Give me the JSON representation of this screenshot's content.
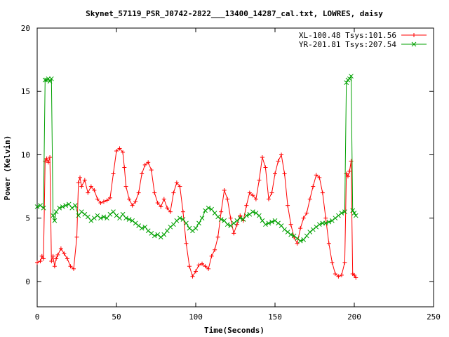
{
  "chart_data": {
    "type": "line",
    "title": "Skynet_57119_PSR_J0742-2822___13400_14287_cal.txt, LOWRES, daisy",
    "xlabel": "Time(Seconds)",
    "ylabel": "Power (Kelvin)",
    "xlim": [
      0,
      250
    ],
    "ylim": [
      -2,
      20
    ],
    "x_ticks": [
      0,
      50,
      100,
      150,
      200,
      250
    ],
    "y_ticks": [
      0,
      5,
      10,
      15,
      20
    ],
    "grid": false,
    "legend_position": "top-right",
    "series": [
      {
        "name": "XL-100.48 Tsys:101.56",
        "color": "#ff0000",
        "marker": "plus",
        "points": [
          [
            0,
            1.5
          ],
          [
            2,
            1.6
          ],
          [
            3,
            2.0
          ],
          [
            4,
            1.8
          ],
          [
            5,
            9.5
          ],
          [
            6,
            9.7
          ],
          [
            7,
            9.4
          ],
          [
            8,
            9.8
          ],
          [
            9,
            1.6
          ],
          [
            10,
            2.0
          ],
          [
            11,
            1.2
          ],
          [
            12,
            1.8
          ],
          [
            13,
            2.1
          ],
          [
            15,
            2.6
          ],
          [
            17,
            2.2
          ],
          [
            19,
            1.8
          ],
          [
            21,
            1.2
          ],
          [
            23,
            1.0
          ],
          [
            25,
            3.5
          ],
          [
            26,
            7.8
          ],
          [
            27,
            8.2
          ],
          [
            28,
            7.5
          ],
          [
            30,
            8.0
          ],
          [
            32,
            7.0
          ],
          [
            34,
            7.5
          ],
          [
            36,
            7.2
          ],
          [
            38,
            6.5
          ],
          [
            40,
            6.2
          ],
          [
            42,
            6.3
          ],
          [
            44,
            6.4
          ],
          [
            46,
            6.6
          ],
          [
            48,
            8.5
          ],
          [
            50,
            10.3
          ],
          [
            52,
            10.5
          ],
          [
            54,
            10.2
          ],
          [
            55,
            9.0
          ],
          [
            56,
            7.5
          ],
          [
            58,
            6.5
          ],
          [
            60,
            6.0
          ],
          [
            62,
            6.3
          ],
          [
            64,
            7.0
          ],
          [
            66,
            8.5
          ],
          [
            68,
            9.2
          ],
          [
            70,
            9.4
          ],
          [
            72,
            8.8
          ],
          [
            74,
            7.0
          ],
          [
            76,
            6.2
          ],
          [
            78,
            5.9
          ],
          [
            80,
            6.5
          ],
          [
            82,
            5.8
          ],
          [
            84,
            5.5
          ],
          [
            86,
            7.0
          ],
          [
            88,
            7.8
          ],
          [
            90,
            7.5
          ],
          [
            92,
            5.5
          ],
          [
            94,
            3.0
          ],
          [
            96,
            1.2
          ],
          [
            98,
            0.4
          ],
          [
            100,
            0.8
          ],
          [
            102,
            1.3
          ],
          [
            104,
            1.4
          ],
          [
            106,
            1.2
          ],
          [
            108,
            1.0
          ],
          [
            110,
            2.0
          ],
          [
            112,
            2.5
          ],
          [
            114,
            3.5
          ],
          [
            116,
            5.5
          ],
          [
            118,
            7.2
          ],
          [
            120,
            6.5
          ],
          [
            122,
            5.0
          ],
          [
            124,
            3.8
          ],
          [
            126,
            4.5
          ],
          [
            128,
            5.2
          ],
          [
            130,
            4.8
          ],
          [
            132,
            6.0
          ],
          [
            134,
            7.0
          ],
          [
            136,
            6.8
          ],
          [
            138,
            6.5
          ],
          [
            140,
            8.0
          ],
          [
            142,
            9.8
          ],
          [
            144,
            9.0
          ],
          [
            146,
            6.5
          ],
          [
            148,
            7.0
          ],
          [
            150,
            8.5
          ],
          [
            152,
            9.5
          ],
          [
            154,
            10.0
          ],
          [
            156,
            8.5
          ],
          [
            158,
            6.0
          ],
          [
            160,
            4.5
          ],
          [
            162,
            3.5
          ],
          [
            164,
            3.0
          ],
          [
            166,
            4.2
          ],
          [
            168,
            5.0
          ],
          [
            170,
            5.4
          ],
          [
            172,
            6.5
          ],
          [
            174,
            7.5
          ],
          [
            176,
            8.4
          ],
          [
            178,
            8.2
          ],
          [
            180,
            7.0
          ],
          [
            182,
            5.0
          ],
          [
            184,
            3.0
          ],
          [
            186,
            1.5
          ],
          [
            188,
            0.6
          ],
          [
            190,
            0.4
          ],
          [
            192,
            0.5
          ],
          [
            194,
            1.5
          ],
          [
            195,
            8.5
          ],
          [
            196,
            8.3
          ],
          [
            197,
            8.7
          ],
          [
            198,
            9.5
          ],
          [
            199,
            0.6
          ],
          [
            200,
            0.5
          ],
          [
            201,
            0.3
          ]
        ]
      },
      {
        "name": "YR-201.81 Tsys:207.54",
        "color": "#00a000",
        "marker": "cross",
        "points": [
          [
            0,
            5.9
          ],
          [
            2,
            6.0
          ],
          [
            4,
            5.8
          ],
          [
            5,
            15.9
          ],
          [
            6,
            15.9
          ],
          [
            7,
            16.0
          ],
          [
            8,
            15.8
          ],
          [
            9,
            16.0
          ],
          [
            10,
            5.2
          ],
          [
            11,
            4.8
          ],
          [
            12,
            5.5
          ],
          [
            14,
            5.8
          ],
          [
            16,
            5.9
          ],
          [
            18,
            6.0
          ],
          [
            20,
            6.1
          ],
          [
            22,
            5.8
          ],
          [
            24,
            6.0
          ],
          [
            26,
            5.2
          ],
          [
            28,
            5.5
          ],
          [
            30,
            5.3
          ],
          [
            32,
            5.1
          ],
          [
            34,
            4.8
          ],
          [
            36,
            5.0
          ],
          [
            38,
            5.2
          ],
          [
            40,
            5.0
          ],
          [
            42,
            5.1
          ],
          [
            44,
            5.0
          ],
          [
            46,
            5.3
          ],
          [
            48,
            5.5
          ],
          [
            50,
            5.2
          ],
          [
            52,
            5.0
          ],
          [
            54,
            5.3
          ],
          [
            56,
            5.0
          ],
          [
            58,
            4.9
          ],
          [
            60,
            4.8
          ],
          [
            62,
            4.6
          ],
          [
            64,
            4.4
          ],
          [
            66,
            4.2
          ],
          [
            68,
            4.3
          ],
          [
            70,
            4.0
          ],
          [
            72,
            3.8
          ],
          [
            74,
            3.6
          ],
          [
            76,
            3.7
          ],
          [
            78,
            3.5
          ],
          [
            80,
            3.7
          ],
          [
            82,
            4.0
          ],
          [
            84,
            4.3
          ],
          [
            86,
            4.5
          ],
          [
            88,
            4.8
          ],
          [
            90,
            5.0
          ],
          [
            92,
            4.9
          ],
          [
            94,
            4.6
          ],
          [
            96,
            4.2
          ],
          [
            98,
            4.0
          ],
          [
            100,
            4.2
          ],
          [
            102,
            4.6
          ],
          [
            104,
            5.0
          ],
          [
            106,
            5.6
          ],
          [
            108,
            5.8
          ],
          [
            110,
            5.7
          ],
          [
            112,
            5.4
          ],
          [
            114,
            5.1
          ],
          [
            116,
            4.9
          ],
          [
            118,
            4.8
          ],
          [
            120,
            4.5
          ],
          [
            122,
            4.4
          ],
          [
            124,
            4.6
          ],
          [
            126,
            4.8
          ],
          [
            128,
            5.0
          ],
          [
            130,
            4.9
          ],
          [
            132,
            5.2
          ],
          [
            134,
            5.3
          ],
          [
            136,
            5.5
          ],
          [
            138,
            5.4
          ],
          [
            140,
            5.2
          ],
          [
            142,
            4.8
          ],
          [
            144,
            4.5
          ],
          [
            146,
            4.6
          ],
          [
            148,
            4.7
          ],
          [
            150,
            4.8
          ],
          [
            152,
            4.6
          ],
          [
            154,
            4.4
          ],
          [
            156,
            4.1
          ],
          [
            158,
            3.9
          ],
          [
            160,
            3.7
          ],
          [
            162,
            3.6
          ],
          [
            164,
            3.4
          ],
          [
            166,
            3.2
          ],
          [
            168,
            3.3
          ],
          [
            170,
            3.6
          ],
          [
            172,
            3.9
          ],
          [
            174,
            4.1
          ],
          [
            176,
            4.3
          ],
          [
            178,
            4.5
          ],
          [
            180,
            4.6
          ],
          [
            182,
            4.6
          ],
          [
            184,
            4.7
          ],
          [
            186,
            4.8
          ],
          [
            188,
            5.0
          ],
          [
            190,
            5.2
          ],
          [
            192,
            5.4
          ],
          [
            194,
            5.5
          ],
          [
            195,
            15.7
          ],
          [
            196,
            15.9
          ],
          [
            197,
            16.0
          ],
          [
            198,
            16.2
          ],
          [
            199,
            5.6
          ],
          [
            200,
            5.4
          ],
          [
            201,
            5.2
          ]
        ]
      }
    ]
  }
}
